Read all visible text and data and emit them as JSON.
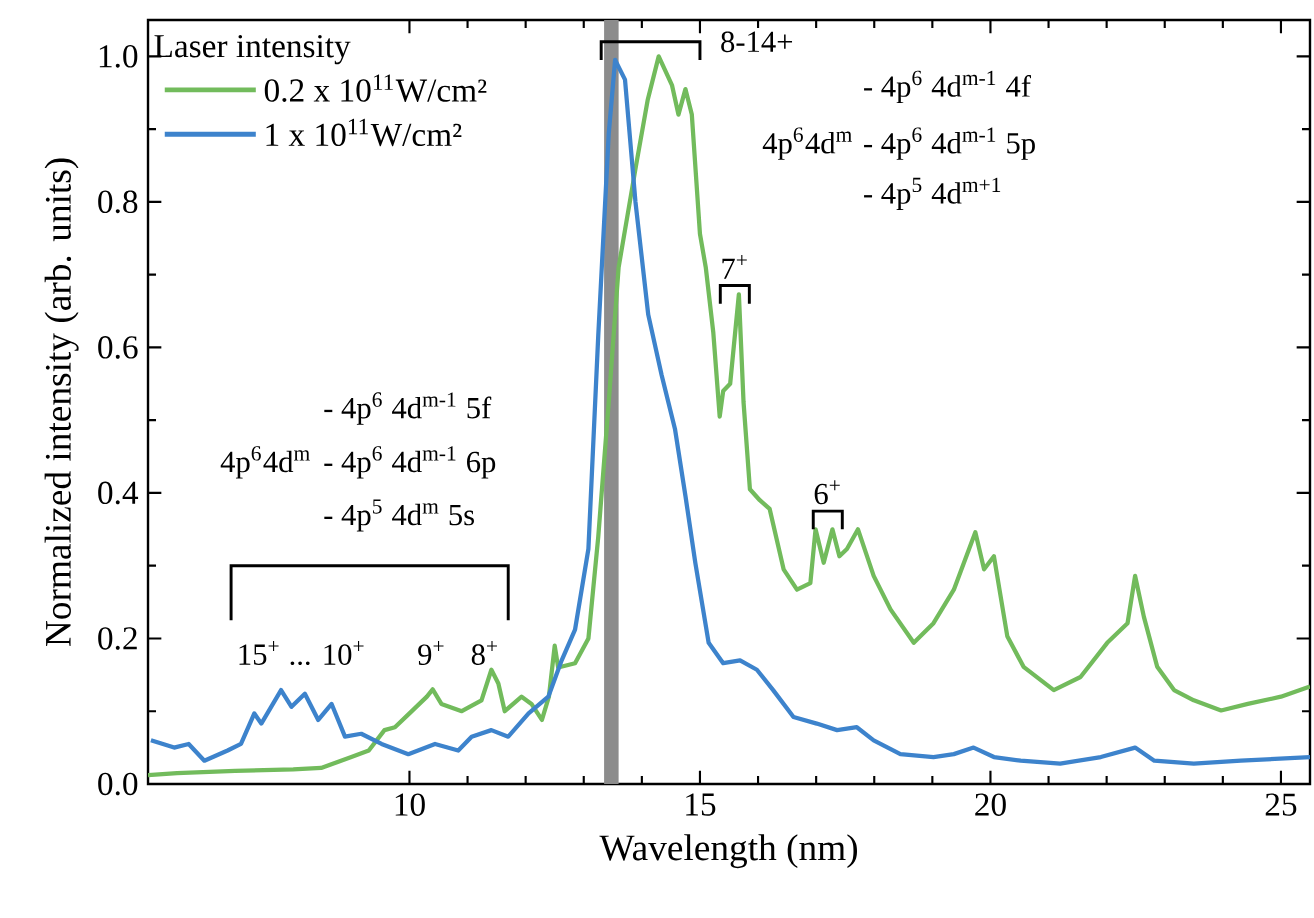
{
  "chart_data": {
    "type": "line",
    "xlabel": "Wavelength (nm)",
    "ylabel": "Normalized intensity (arb. units)",
    "legend_title": "Laser intensity",
    "legend": "top left",
    "xlim": [
      5.5,
      25.5
    ],
    "ylim": [
      0,
      1.05
    ],
    "xticks": [
      10,
      15,
      20,
      25
    ],
    "yticks": [
      {
        "value": 0,
        "label": "0.0"
      },
      {
        "value": 0.2,
        "label": "0.2"
      },
      {
        "value": 0.4,
        "label": "0.4"
      },
      {
        "value": 0.6,
        "label": "0.6"
      },
      {
        "value": 0.8,
        "label": "0.8"
      },
      {
        "value": 1.0,
        "label": "1.0"
      }
    ],
    "bands": [
      {
        "axis": "x",
        "from": 13.35,
        "to": 13.6,
        "color": "#8c8c8c"
      }
    ],
    "series": [
      {
        "name": "0.2 x 10$^{11}$W/cm²",
        "color": "#72bb5c",
        "x": [
          5.5,
          6.0,
          7.0,
          8.0,
          8.48,
          9.0,
          9.3,
          9.57,
          9.75,
          10.0,
          10.3,
          10.4,
          10.55,
          10.9,
          11.24,
          11.41,
          11.53,
          11.64,
          11.93,
          12.1,
          12.28,
          12.4,
          12.5,
          12.56,
          12.85,
          13.08,
          13.25,
          13.43,
          13.6,
          13.9,
          14.1,
          14.29,
          14.52,
          14.63,
          14.75,
          14.86,
          15.0,
          15.1,
          15.23,
          15.34,
          15.4,
          15.52,
          15.67,
          15.75,
          15.86,
          16.03,
          16.2,
          16.44,
          16.67,
          16.9,
          16.99,
          17.13,
          17.28,
          17.4,
          17.53,
          17.72,
          17.99,
          18.28,
          18.68,
          19.02,
          19.37,
          19.74,
          19.89,
          20.06,
          20.29,
          20.57,
          21.09,
          21.55,
          22.01,
          22.36,
          22.49,
          22.64,
          22.87,
          23.16,
          23.5,
          23.97,
          24.43,
          25.0,
          25.5
        ],
        "values": [
          0.012,
          0.015,
          0.018,
          0.02,
          0.022,
          0.037,
          0.046,
          0.074,
          0.078,
          0.097,
          0.12,
          0.13,
          0.11,
          0.1,
          0.115,
          0.157,
          0.138,
          0.1,
          0.12,
          0.11,
          0.088,
          0.12,
          0.19,
          0.16,
          0.166,
          0.2,
          0.34,
          0.525,
          0.71,
          0.85,
          0.94,
          1.0,
          0.96,
          0.92,
          0.955,
          0.92,
          0.756,
          0.71,
          0.62,
          0.505,
          0.54,
          0.55,
          0.673,
          0.525,
          0.405,
          0.39,
          0.378,
          0.295,
          0.267,
          0.276,
          0.35,
          0.304,
          0.35,
          0.313,
          0.323,
          0.35,
          0.286,
          0.24,
          0.194,
          0.221,
          0.267,
          0.346,
          0.295,
          0.313,
          0.203,
          0.161,
          0.129,
          0.147,
          0.194,
          0.221,
          0.286,
          0.23,
          0.161,
          0.129,
          0.115,
          0.101,
          0.11,
          0.12,
          0.134
        ]
      },
      {
        "name": "1 x 10$^{11}$W/cm²",
        "color": "#3d83cc",
        "x": [
          5.55,
          5.95,
          6.2,
          6.47,
          6.87,
          7.1,
          7.33,
          7.45,
          7.79,
          7.97,
          8.2,
          8.43,
          8.66,
          8.89,
          9.17,
          9.52,
          9.98,
          10.44,
          10.84,
          11.07,
          11.41,
          11.7,
          12.05,
          12.39,
          12.62,
          12.85,
          13.08,
          13.25,
          13.43,
          13.54,
          13.71,
          13.89,
          14.11,
          14.34,
          14.57,
          14.75,
          14.92,
          15.15,
          15.4,
          15.69,
          15.98,
          16.26,
          16.61,
          17.01,
          17.36,
          17.7,
          17.99,
          18.45,
          19.02,
          19.37,
          19.71,
          20.06,
          20.52,
          21.2,
          21.9,
          22.49,
          22.82,
          23.5,
          24.31,
          25.5
        ],
        "values": [
          0.06,
          0.05,
          0.055,
          0.032,
          0.046,
          0.055,
          0.097,
          0.083,
          0.129,
          0.106,
          0.124,
          0.088,
          0.11,
          0.065,
          0.069,
          0.055,
          0.041,
          0.055,
          0.046,
          0.065,
          0.074,
          0.065,
          0.097,
          0.12,
          0.17,
          0.212,
          0.323,
          0.617,
          0.894,
          0.995,
          0.968,
          0.8,
          0.645,
          0.562,
          0.488,
          0.396,
          0.304,
          0.194,
          0.166,
          0.17,
          0.157,
          0.129,
          0.092,
          0.083,
          0.074,
          0.078,
          0.06,
          0.041,
          0.037,
          0.041,
          0.05,
          0.037,
          0.032,
          0.028,
          0.037,
          0.05,
          0.032,
          0.028,
          0.032,
          0.037
        ]
      }
    ],
    "annotations": [
      {
        "text": "8-14+",
        "x": 14.29,
        "y": 1.0
      },
      "7$^{+}$",
      "6$^{+}$",
      "15$^{+}$ ... 10$^{+}$",
      "9$^{+}$",
      "8$^{+}$",
      "- 4p$^{6}$ 4d$^{m-1}$ 4f",
      "4p$^{6}$4d$^{m}$",
      "- 4p$^{6}$ 4d$^{m-1}$ 5p",
      "- 4p$^{5}$ 4d$^{m+1}$",
      "- 4p$^{6}$ 4d$^{m-1}$ 5f",
      "4p$^{6}$4d$^{m}$",
      "- 4p$^{6}$ 4d$^{m-1}$ 6p",
      "- 4p$^{5}$ 4d$^{m}$ 5s"
    ]
  }
}
